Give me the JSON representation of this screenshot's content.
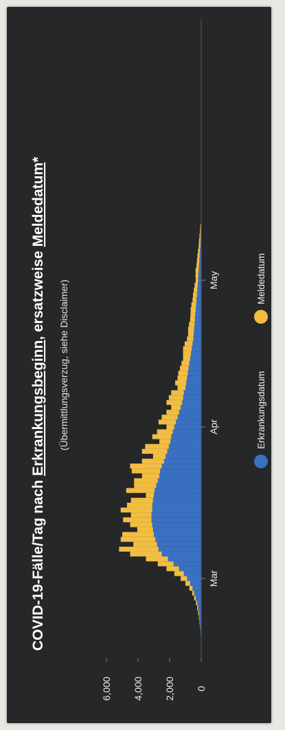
{
  "chart_data": {
    "type": "bar",
    "stacked": true,
    "orientation": "rotated 90° counter-clockwise on page",
    "title_parts": [
      {
        "text": "COVID-19-Fälle/Tag nach ",
        "underline": false
      },
      {
        "text": "Erkrankungsbeginn",
        "underline": true
      },
      {
        "text": ", ersatzweise ",
        "underline": false
      },
      {
        "text": "Meldedatum",
        "underline": true
      },
      {
        "text": "*",
        "underline": false
      }
    ],
    "subtitle": "(Übermittlungsverzug, siehe Disclaimer)",
    "y_ticks": [
      "0",
      "2,000",
      "4,000",
      "6,000"
    ],
    "ylim": [
      0,
      6000
    ],
    "x_ticks": [
      "Mar",
      "Apr",
      "May"
    ],
    "x_tick_days": [
      0,
      31,
      61
    ],
    "x_start_day": -12,
    "grid": false,
    "legend_position": "bottom",
    "colors": {
      "Erkrankungsdatum": "#3a70c2",
      "Meldedatum": "#f2be42",
      "background": "#262729",
      "text": "#ffffff"
    },
    "series": [
      {
        "name": "Erkrankungsdatum",
        "values": [
          20,
          40,
          60,
          90,
          120,
          150,
          200,
          250,
          350,
          450,
          550,
          700,
          900,
          1100,
          1400,
          1750,
          2100,
          2500,
          2700,
          2800,
          2900,
          3000,
          3050,
          3100,
          3150,
          3150,
          3100,
          3100,
          3050,
          3000,
          2950,
          2850,
          2750,
          2650,
          2600,
          2500,
          2350,
          2250,
          2150,
          2050,
          1950,
          1900,
          1800,
          1700,
          1600,
          1500,
          1400,
          1300,
          1200,
          1150,
          1100,
          1000,
          950,
          900,
          850,
          800,
          750,
          700,
          650,
          600,
          550,
          500,
          480,
          450,
          420,
          400,
          380,
          350,
          320,
          300,
          270,
          250,
          220,
          200,
          180,
          160,
          140,
          120,
          100,
          80,
          60,
          50,
          40,
          30,
          20
        ]
      },
      {
        "name": "Meldedatum",
        "values": [
          0,
          0,
          10,
          20,
          30,
          50,
          60,
          80,
          100,
          120,
          200,
          300,
          400,
          600,
          800,
          1000,
          1400,
          2000,
          2500,
          1500,
          2200,
          2000,
          1000,
          1400,
          1800,
          1300,
          2000,
          1600,
          1400,
          500,
          1800,
          1400,
          1500,
          1100,
          1800,
          2000,
          1400,
          800,
          1600,
          1500,
          700,
          1200,
          1000,
          500,
          1100,
          1000,
          800,
          600,
          1000,
          900,
          800,
          500,
          700,
          600,
          600,
          550,
          500,
          450,
          500,
          550,
          500,
          400,
          350,
          380,
          350,
          300,
          300,
          320,
          300,
          250,
          250,
          220,
          200,
          150,
          180,
          200,
          160,
          150,
          140,
          120,
          100,
          90,
          70,
          50,
          40
        ]
      }
    ]
  },
  "legend": {
    "items": [
      "Erkrankungsdatum",
      "Meldedatum"
    ]
  }
}
